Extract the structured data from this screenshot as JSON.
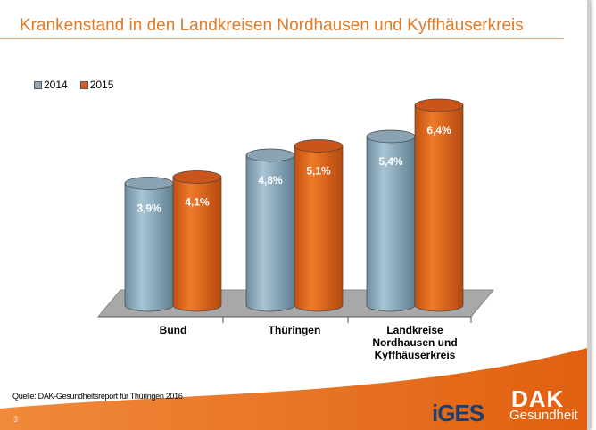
{
  "title": "Krankenstand in den Landkreisen Nordhausen und Kyffhäuserkreis",
  "source": "Quelle: DAK-Gesundheitsreport für Thüringen 2016",
  "page_number": "3",
  "logos": {
    "iges": "iGES",
    "dak": "DAK",
    "dak_sub": "Gesundheit"
  },
  "colors": {
    "accent": "#e0661a",
    "s2014": "#8fb0c4",
    "s2015": "#e0661a"
  },
  "chart_data": {
    "type": "bar",
    "style": "3d-cylinder",
    "categories": [
      "Bund",
      "Thüringen",
      "Landkreise Nordhausen und Kyffhäuserkreis"
    ],
    "category_lines": [
      [
        "Bund"
      ],
      [
        "Thüringen"
      ],
      [
        "Landkreise",
        "Nordhausen und",
        "Kyffhäuserkreis"
      ]
    ],
    "series": [
      {
        "name": "2014",
        "values": [
          3.9,
          4.8,
          5.4
        ],
        "labels": [
          "3,9%",
          "4,8%",
          "5,4%"
        ]
      },
      {
        "name": "2015",
        "values": [
          4.1,
          5.1,
          6.4
        ],
        "labels": [
          "4,1%",
          "5,1%",
          "6,4%"
        ]
      }
    ],
    "legend": "top-left",
    "grid": false
  }
}
